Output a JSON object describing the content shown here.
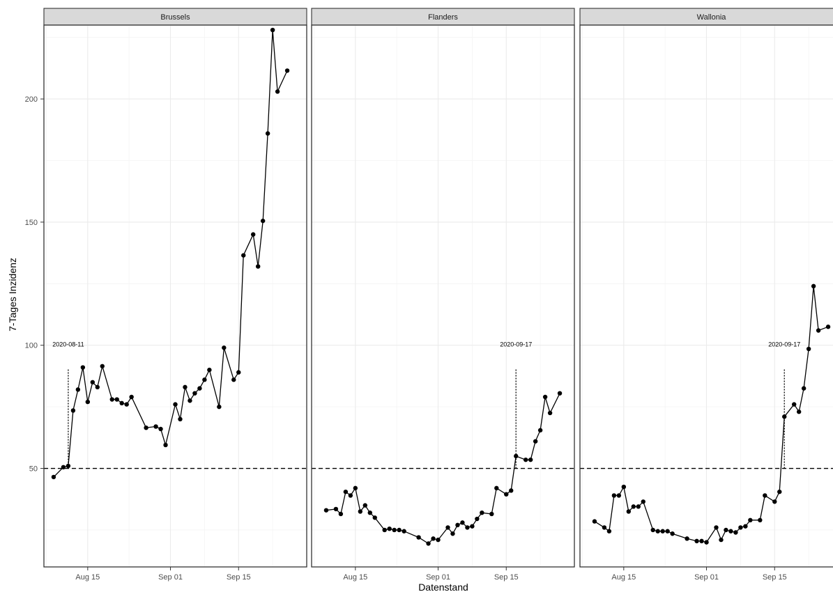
{
  "chart_data": {
    "type": "line",
    "xlabel": "Datenstand",
    "ylabel": "7-Tages Inzidenz",
    "ylim": [
      10,
      230
    ],
    "yticks": [
      50,
      100,
      150,
      200
    ],
    "xticks": [
      {
        "date": "2020-08-15",
        "label": "Aug 15"
      },
      {
        "date": "2020-09-01",
        "label": "Sep 01"
      },
      {
        "date": "2020-09-15",
        "label": "Sep 15"
      }
    ],
    "xlim": [
      "2020-08-06",
      "2020-09-29"
    ],
    "grid": true,
    "threshold": 50,
    "facets": [
      {
        "name": "Brussels",
        "marker_date": "2020-08-11",
        "marker_label": "2020-08-11",
        "points": [
          [
            "2020-08-08",
            46.5
          ],
          [
            "2020-08-10",
            50.5
          ],
          [
            "2020-08-11",
            51
          ],
          [
            "2020-08-12",
            73.5
          ],
          [
            "2020-08-13",
            82
          ],
          [
            "2020-08-14",
            91
          ],
          [
            "2020-08-15",
            77
          ],
          [
            "2020-08-16",
            85
          ],
          [
            "2020-08-17",
            83
          ],
          [
            "2020-08-18",
            91.5
          ],
          [
            "2020-08-20",
            78
          ],
          [
            "2020-08-21",
            78
          ],
          [
            "2020-08-22",
            76.5
          ],
          [
            "2020-08-23",
            76
          ],
          [
            "2020-08-24",
            79
          ],
          [
            "2020-08-27",
            66.5
          ],
          [
            "2020-08-29",
            67
          ],
          [
            "2020-08-30",
            66
          ],
          [
            "2020-08-31",
            59.5
          ],
          [
            "2020-09-02",
            76
          ],
          [
            "2020-09-03",
            70
          ],
          [
            "2020-09-04",
            83
          ],
          [
            "2020-09-05",
            77.5
          ],
          [
            "2020-09-06",
            80.5
          ],
          [
            "2020-09-07",
            82.5
          ],
          [
            "2020-09-08",
            86
          ],
          [
            "2020-09-09",
            90
          ],
          [
            "2020-09-11",
            75
          ],
          [
            "2020-09-12",
            99
          ],
          [
            "2020-09-14",
            86
          ],
          [
            "2020-09-15",
            89
          ],
          [
            "2020-09-16",
            136.5
          ],
          [
            "2020-09-18",
            145
          ],
          [
            "2020-09-19",
            132
          ],
          [
            "2020-09-20",
            150.5
          ],
          [
            "2020-09-21",
            186
          ],
          [
            "2020-09-22",
            228
          ],
          [
            "2020-09-23",
            203
          ],
          [
            "2020-09-25",
            211.5
          ]
        ]
      },
      {
        "name": "Flanders",
        "marker_date": "2020-09-17",
        "marker_label": "2020-09-17",
        "points": [
          [
            "2020-08-09",
            33
          ],
          [
            "2020-08-11",
            33.5
          ],
          [
            "2020-08-12",
            31.5
          ],
          [
            "2020-08-13",
            40.5
          ],
          [
            "2020-08-14",
            39
          ],
          [
            "2020-08-15",
            42
          ],
          [
            "2020-08-16",
            32.5
          ],
          [
            "2020-08-17",
            35
          ],
          [
            "2020-08-18",
            32
          ],
          [
            "2020-08-19",
            30
          ],
          [
            "2020-08-21",
            25
          ],
          [
            "2020-08-22",
            25.5
          ],
          [
            "2020-08-23",
            25
          ],
          [
            "2020-08-24",
            25
          ],
          [
            "2020-08-25",
            24.5
          ],
          [
            "2020-08-28",
            22
          ],
          [
            "2020-08-30",
            19.5
          ],
          [
            "2020-08-31",
            21.5
          ],
          [
            "2020-09-01",
            21
          ],
          [
            "2020-09-03",
            26
          ],
          [
            "2020-09-04",
            23.5
          ],
          [
            "2020-09-05",
            27
          ],
          [
            "2020-09-06",
            28
          ],
          [
            "2020-09-07",
            26
          ],
          [
            "2020-09-08",
            26.5
          ],
          [
            "2020-09-09",
            29.5
          ],
          [
            "2020-09-10",
            32
          ],
          [
            "2020-09-12",
            31.5
          ],
          [
            "2020-09-13",
            42
          ],
          [
            "2020-09-15",
            39.5
          ],
          [
            "2020-09-16",
            41
          ],
          [
            "2020-09-17",
            55
          ],
          [
            "2020-09-19",
            53.5
          ],
          [
            "2020-09-20",
            53.5
          ],
          [
            "2020-09-21",
            61
          ],
          [
            "2020-09-22",
            65.5
          ],
          [
            "2020-09-23",
            79
          ],
          [
            "2020-09-24",
            72.5
          ],
          [
            "2020-09-26",
            80.5
          ]
        ]
      },
      {
        "name": "Wallonia",
        "marker_date": "2020-09-17",
        "marker_label": "2020-09-17",
        "points": [
          [
            "2020-08-09",
            28.5
          ],
          [
            "2020-08-11",
            26
          ],
          [
            "2020-08-12",
            24.5
          ],
          [
            "2020-08-13",
            39
          ],
          [
            "2020-08-14",
            39
          ],
          [
            "2020-08-15",
            42.5
          ],
          [
            "2020-08-16",
            32.5
          ],
          [
            "2020-08-17",
            34.5
          ],
          [
            "2020-08-18",
            34.5
          ],
          [
            "2020-08-19",
            36.5
          ],
          [
            "2020-08-21",
            25
          ],
          [
            "2020-08-22",
            24.5
          ],
          [
            "2020-08-23",
            24.5
          ],
          [
            "2020-08-24",
            24.5
          ],
          [
            "2020-08-25",
            23.5
          ],
          [
            "2020-08-28",
            21.5
          ],
          [
            "2020-08-30",
            20.5
          ],
          [
            "2020-08-31",
            20.5
          ],
          [
            "2020-09-01",
            20
          ],
          [
            "2020-09-03",
            26
          ],
          [
            "2020-09-04",
            21
          ],
          [
            "2020-09-05",
            25
          ],
          [
            "2020-09-06",
            24.5
          ],
          [
            "2020-09-07",
            24
          ],
          [
            "2020-09-08",
            26
          ],
          [
            "2020-09-09",
            26.5
          ],
          [
            "2020-09-10",
            29
          ],
          [
            "2020-09-12",
            29
          ],
          [
            "2020-09-13",
            39
          ],
          [
            "2020-09-15",
            36.5
          ],
          [
            "2020-09-16",
            40.5
          ],
          [
            "2020-09-17",
            71
          ],
          [
            "2020-09-19",
            76
          ],
          [
            "2020-09-20",
            73
          ],
          [
            "2020-09-21",
            82.5
          ],
          [
            "2020-09-22",
            98.5
          ],
          [
            "2020-09-23",
            124
          ],
          [
            "2020-09-24",
            106
          ],
          [
            "2020-09-26",
            107.5
          ]
        ]
      }
    ]
  }
}
